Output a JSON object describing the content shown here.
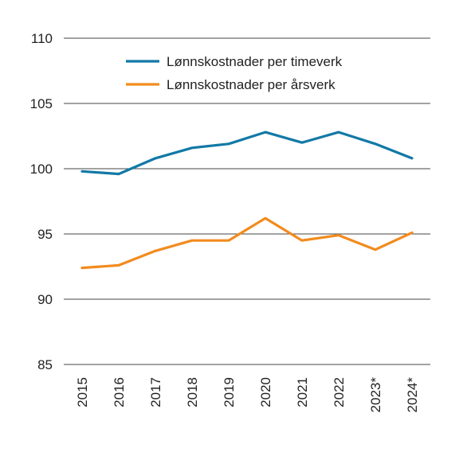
{
  "chart_data": {
    "type": "line",
    "title": "",
    "xlabel": "",
    "ylabel": "",
    "ylim": [
      85,
      110
    ],
    "yticks": [
      85,
      90,
      95,
      100,
      105,
      110
    ],
    "grid": true,
    "legend_position": "top-center",
    "categories": [
      "2015",
      "2016",
      "2017",
      "2018",
      "2019",
      "2020",
      "2021",
      "2022",
      "2023*",
      "2024*"
    ],
    "series": [
      {
        "name": "Lønnskostnader per timeverk",
        "color": "#1279a6",
        "values": [
          99.8,
          99.6,
          100.8,
          101.6,
          101.9,
          102.8,
          102.0,
          102.8,
          101.9,
          100.8
        ]
      },
      {
        "name": "Lønnskostnader per årsverk",
        "color": "#f28b1e",
        "values": [
          92.4,
          92.6,
          93.7,
          94.5,
          94.5,
          96.2,
          94.5,
          94.9,
          93.8,
          95.1
        ]
      }
    ]
  }
}
